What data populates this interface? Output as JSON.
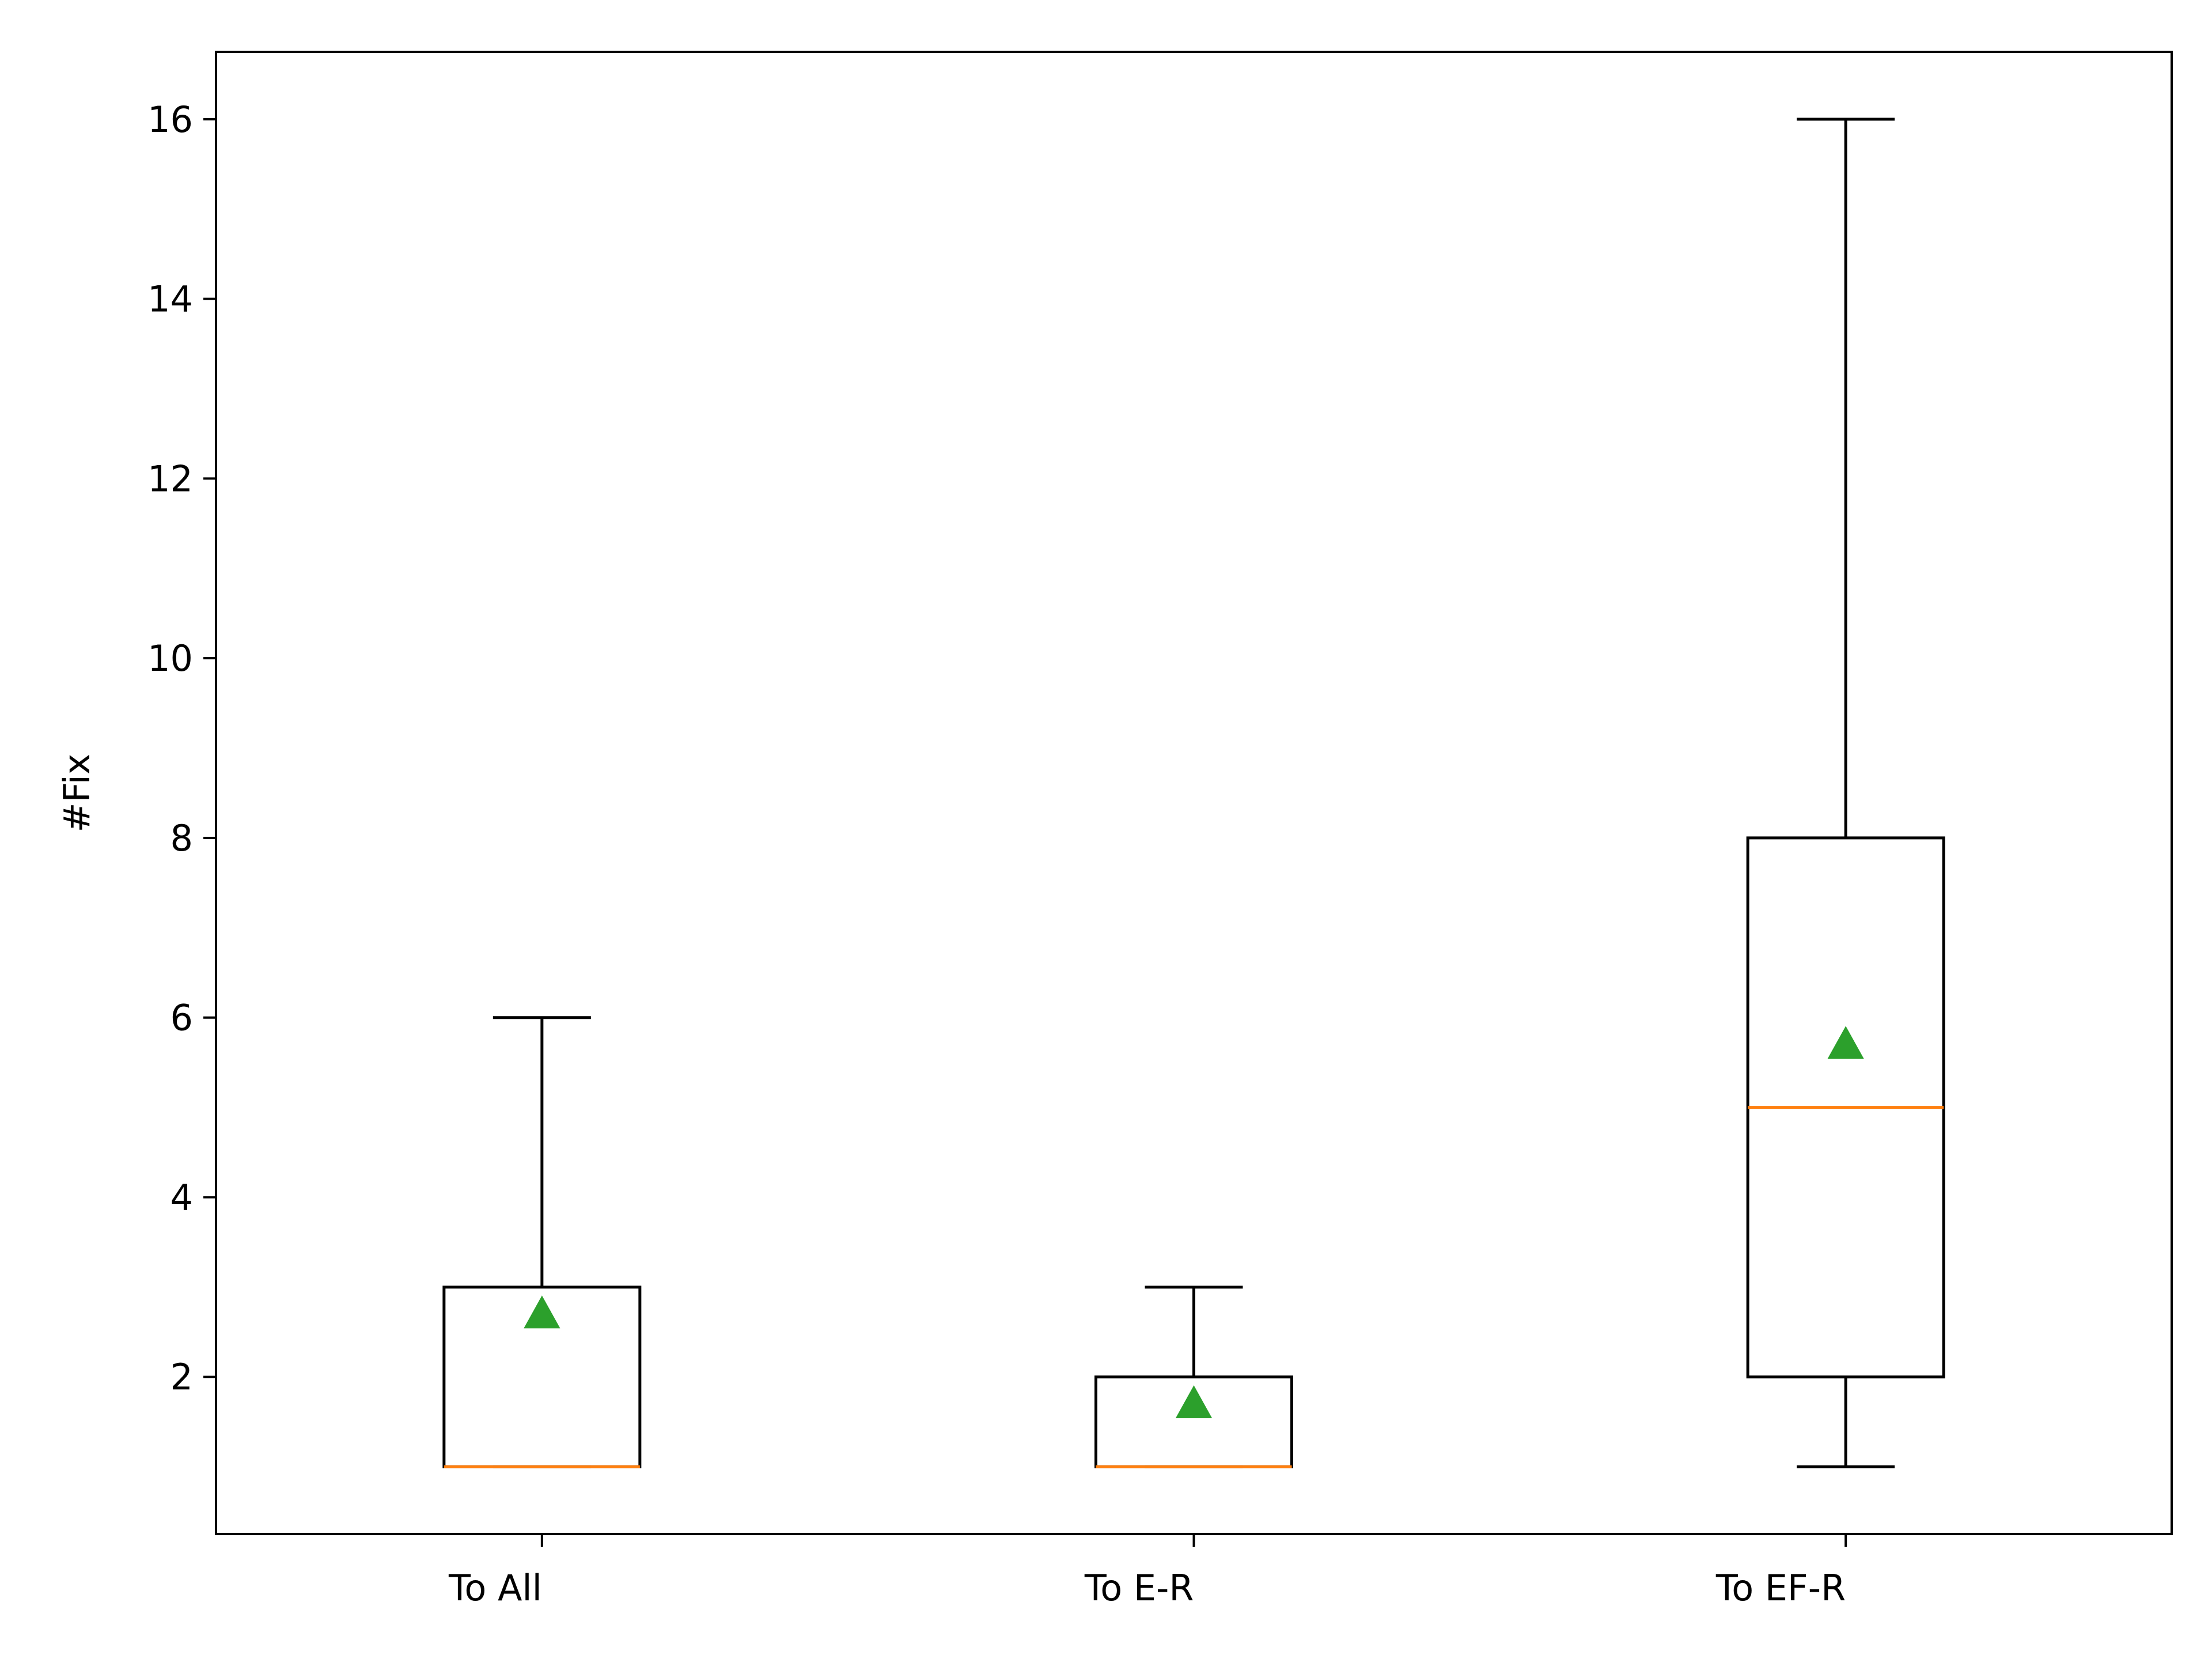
{
  "chart_data": {
    "type": "box",
    "title": "",
    "xlabel": "",
    "ylabel": "#Fix",
    "ylim": [
      0.25,
      16.75
    ],
    "yticks": [
      2,
      4,
      6,
      8,
      10,
      12,
      14,
      16
    ],
    "grid": false,
    "categories": [
      "To All",
      "To E-R",
      "To EF-R"
    ],
    "boxes": [
      {
        "category": "To All",
        "whislo": 1,
        "q1": 1,
        "median": 1,
        "q3": 3,
        "whishi": 6,
        "mean": 2.7
      },
      {
        "category": "To E-R",
        "whislo": 1,
        "q1": 1,
        "median": 1,
        "q3": 2,
        "whishi": 3,
        "mean": 1.7
      },
      {
        "category": "To EF-R",
        "whislo": 1,
        "q1": 2,
        "median": 5,
        "q3": 8,
        "whishi": 16,
        "mean": 5.7
      }
    ],
    "colors": {
      "box": "#000000",
      "median": "#ff7f0e",
      "mean": "#2ca02c"
    }
  }
}
